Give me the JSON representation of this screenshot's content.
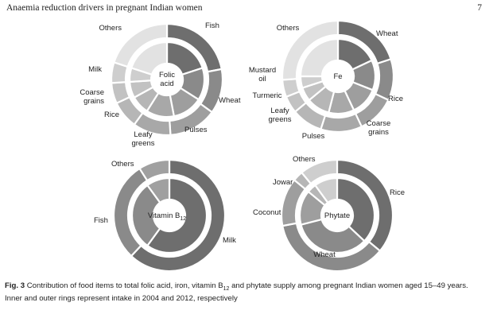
{
  "page": {
    "header_title": "Anaemia reduction drivers in pregnant Indian women",
    "page_number": "7"
  },
  "caption": {
    "label": "Fig. 3",
    "text": "Contribution of food items to total folic acid, iron, vitamin B12 and phytate supply among pregnant Indian women aged 15–49 years. Inner and outer rings represent intake in 2004 and 2012, respectively"
  },
  "chart_data": [
    {
      "type": "pie",
      "variant": "nested-donut",
      "center_label": "Folic acid",
      "ring_years": [
        "2004",
        "2012"
      ],
      "categories": [
        "Fish",
        "Wheat",
        "Pulses",
        "Leafy greens",
        "Rice",
        "Coarse grains",
        "Milk",
        "Others"
      ],
      "series": [
        {
          "values": [
            20,
            14,
            13,
            12,
            8,
            7,
            6,
            20
          ]
        },
        {
          "values": [
            22,
            13,
            14,
            11,
            8,
            6,
            6,
            20
          ]
        }
      ],
      "colors": [
        "#6e6e6e",
        "#8a8a8a",
        "#9e9e9e",
        "#a8a8a8",
        "#b6b6b6",
        "#c2c2c2",
        "#cecece",
        "#e2e2e2"
      ]
    },
    {
      "type": "pie",
      "variant": "nested-donut",
      "center_label": "Fe",
      "ring_years": [
        "2004",
        "2012"
      ],
      "categories": [
        "Wheat",
        "Rice",
        "Coarse grains",
        "Pulses",
        "Leafy greens",
        "Turmeric",
        "Mustard oil",
        "Others"
      ],
      "series": [
        {
          "values": [
            18,
            13,
            12,
            11,
            10,
            6,
            5,
            25
          ]
        },
        {
          "values": [
            20,
            12,
            11,
            12,
            9,
            5,
            5,
            26
          ]
        }
      ],
      "colors": [
        "#6e6e6e",
        "#8a8a8a",
        "#9e9e9e",
        "#a8a8a8",
        "#b6b6b6",
        "#c2c2c2",
        "#cecece",
        "#e2e2e2"
      ]
    },
    {
      "type": "pie",
      "variant": "nested-donut",
      "center_label": "Vitamin B",
      "center_label_sub": "12",
      "ring_years": [
        "2004",
        "2012"
      ],
      "categories": [
        "Milk",
        "Fish",
        "Others"
      ],
      "series": [
        {
          "values": [
            60,
            30,
            10
          ]
        },
        {
          "values": [
            62,
            29,
            9
          ]
        }
      ],
      "colors": [
        "#6e6e6e",
        "#8a8a8a",
        "#a0a0a0"
      ]
    },
    {
      "type": "pie",
      "variant": "nested-donut",
      "center_label": "Phytate",
      "ring_years": [
        "2004",
        "2012"
      ],
      "categories": [
        "Rice",
        "Wheat",
        "Coconut",
        "Jowar",
        "Others"
      ],
      "series": [
        {
          "values": [
            37,
            34,
            15,
            4,
            10
          ]
        },
        {
          "values": [
            36,
            36,
            14,
            3,
            11
          ]
        }
      ],
      "colors": [
        "#6e6e6e",
        "#8a8a8a",
        "#9e9e9e",
        "#b6b6b6",
        "#cecece"
      ]
    }
  ]
}
